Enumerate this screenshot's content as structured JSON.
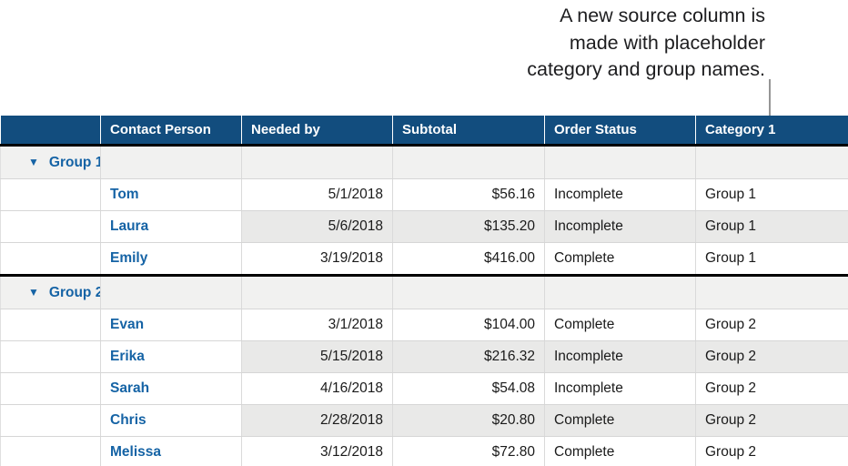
{
  "annotation": {
    "lines": [
      "A new source column is",
      "made with placeholder",
      "category and group names."
    ]
  },
  "table": {
    "collapse_icon": "▼",
    "corner_header": "",
    "columns": [
      "Contact Person",
      "Needed by",
      "Subtotal",
      "Order Status",
      "Category 1"
    ],
    "groups": [
      {
        "label": "Group 1",
        "rows": [
          {
            "contact": "Tom",
            "needed_by": "5/1/2018",
            "subtotal": "$56.16",
            "order_status": "Incomplete",
            "category": "Group 1"
          },
          {
            "contact": "Laura",
            "needed_by": "5/6/2018",
            "subtotal": "$135.20",
            "order_status": "Incomplete",
            "category": "Group 1"
          },
          {
            "contact": "Emily",
            "needed_by": "3/19/2018",
            "subtotal": "$416.00",
            "order_status": "Complete",
            "category": "Group 1"
          }
        ]
      },
      {
        "label": "Group 2",
        "rows": [
          {
            "contact": "Evan",
            "needed_by": "3/1/2018",
            "subtotal": "$104.00",
            "order_status": "Complete",
            "category": "Group 2"
          },
          {
            "contact": "Erika",
            "needed_by": "5/15/2018",
            "subtotal": "$216.32",
            "order_status": "Incomplete",
            "category": "Group 2"
          },
          {
            "contact": "Sarah",
            "needed_by": "4/16/2018",
            "subtotal": "$54.08",
            "order_status": "Incomplete",
            "category": "Group 2"
          },
          {
            "contact": "Chris",
            "needed_by": "2/28/2018",
            "subtotal": "$20.80",
            "order_status": "Complete",
            "category": "Group 2"
          },
          {
            "contact": "Melissa",
            "needed_by": "3/12/2018",
            "subtotal": "$72.80",
            "order_status": "Complete",
            "category": "Group 2"
          }
        ]
      }
    ]
  },
  "colors": {
    "header_background": "#124d7e",
    "header_text": "#ffffff",
    "accent_blue": "#1563a5",
    "banded_row": "#e9e9e8",
    "group_row": "#f1f1f0",
    "grid_line": "#d6d6d6",
    "section_divider": "#000000",
    "callout_line": "#969696",
    "callout_text": "#1d1d1f"
  }
}
